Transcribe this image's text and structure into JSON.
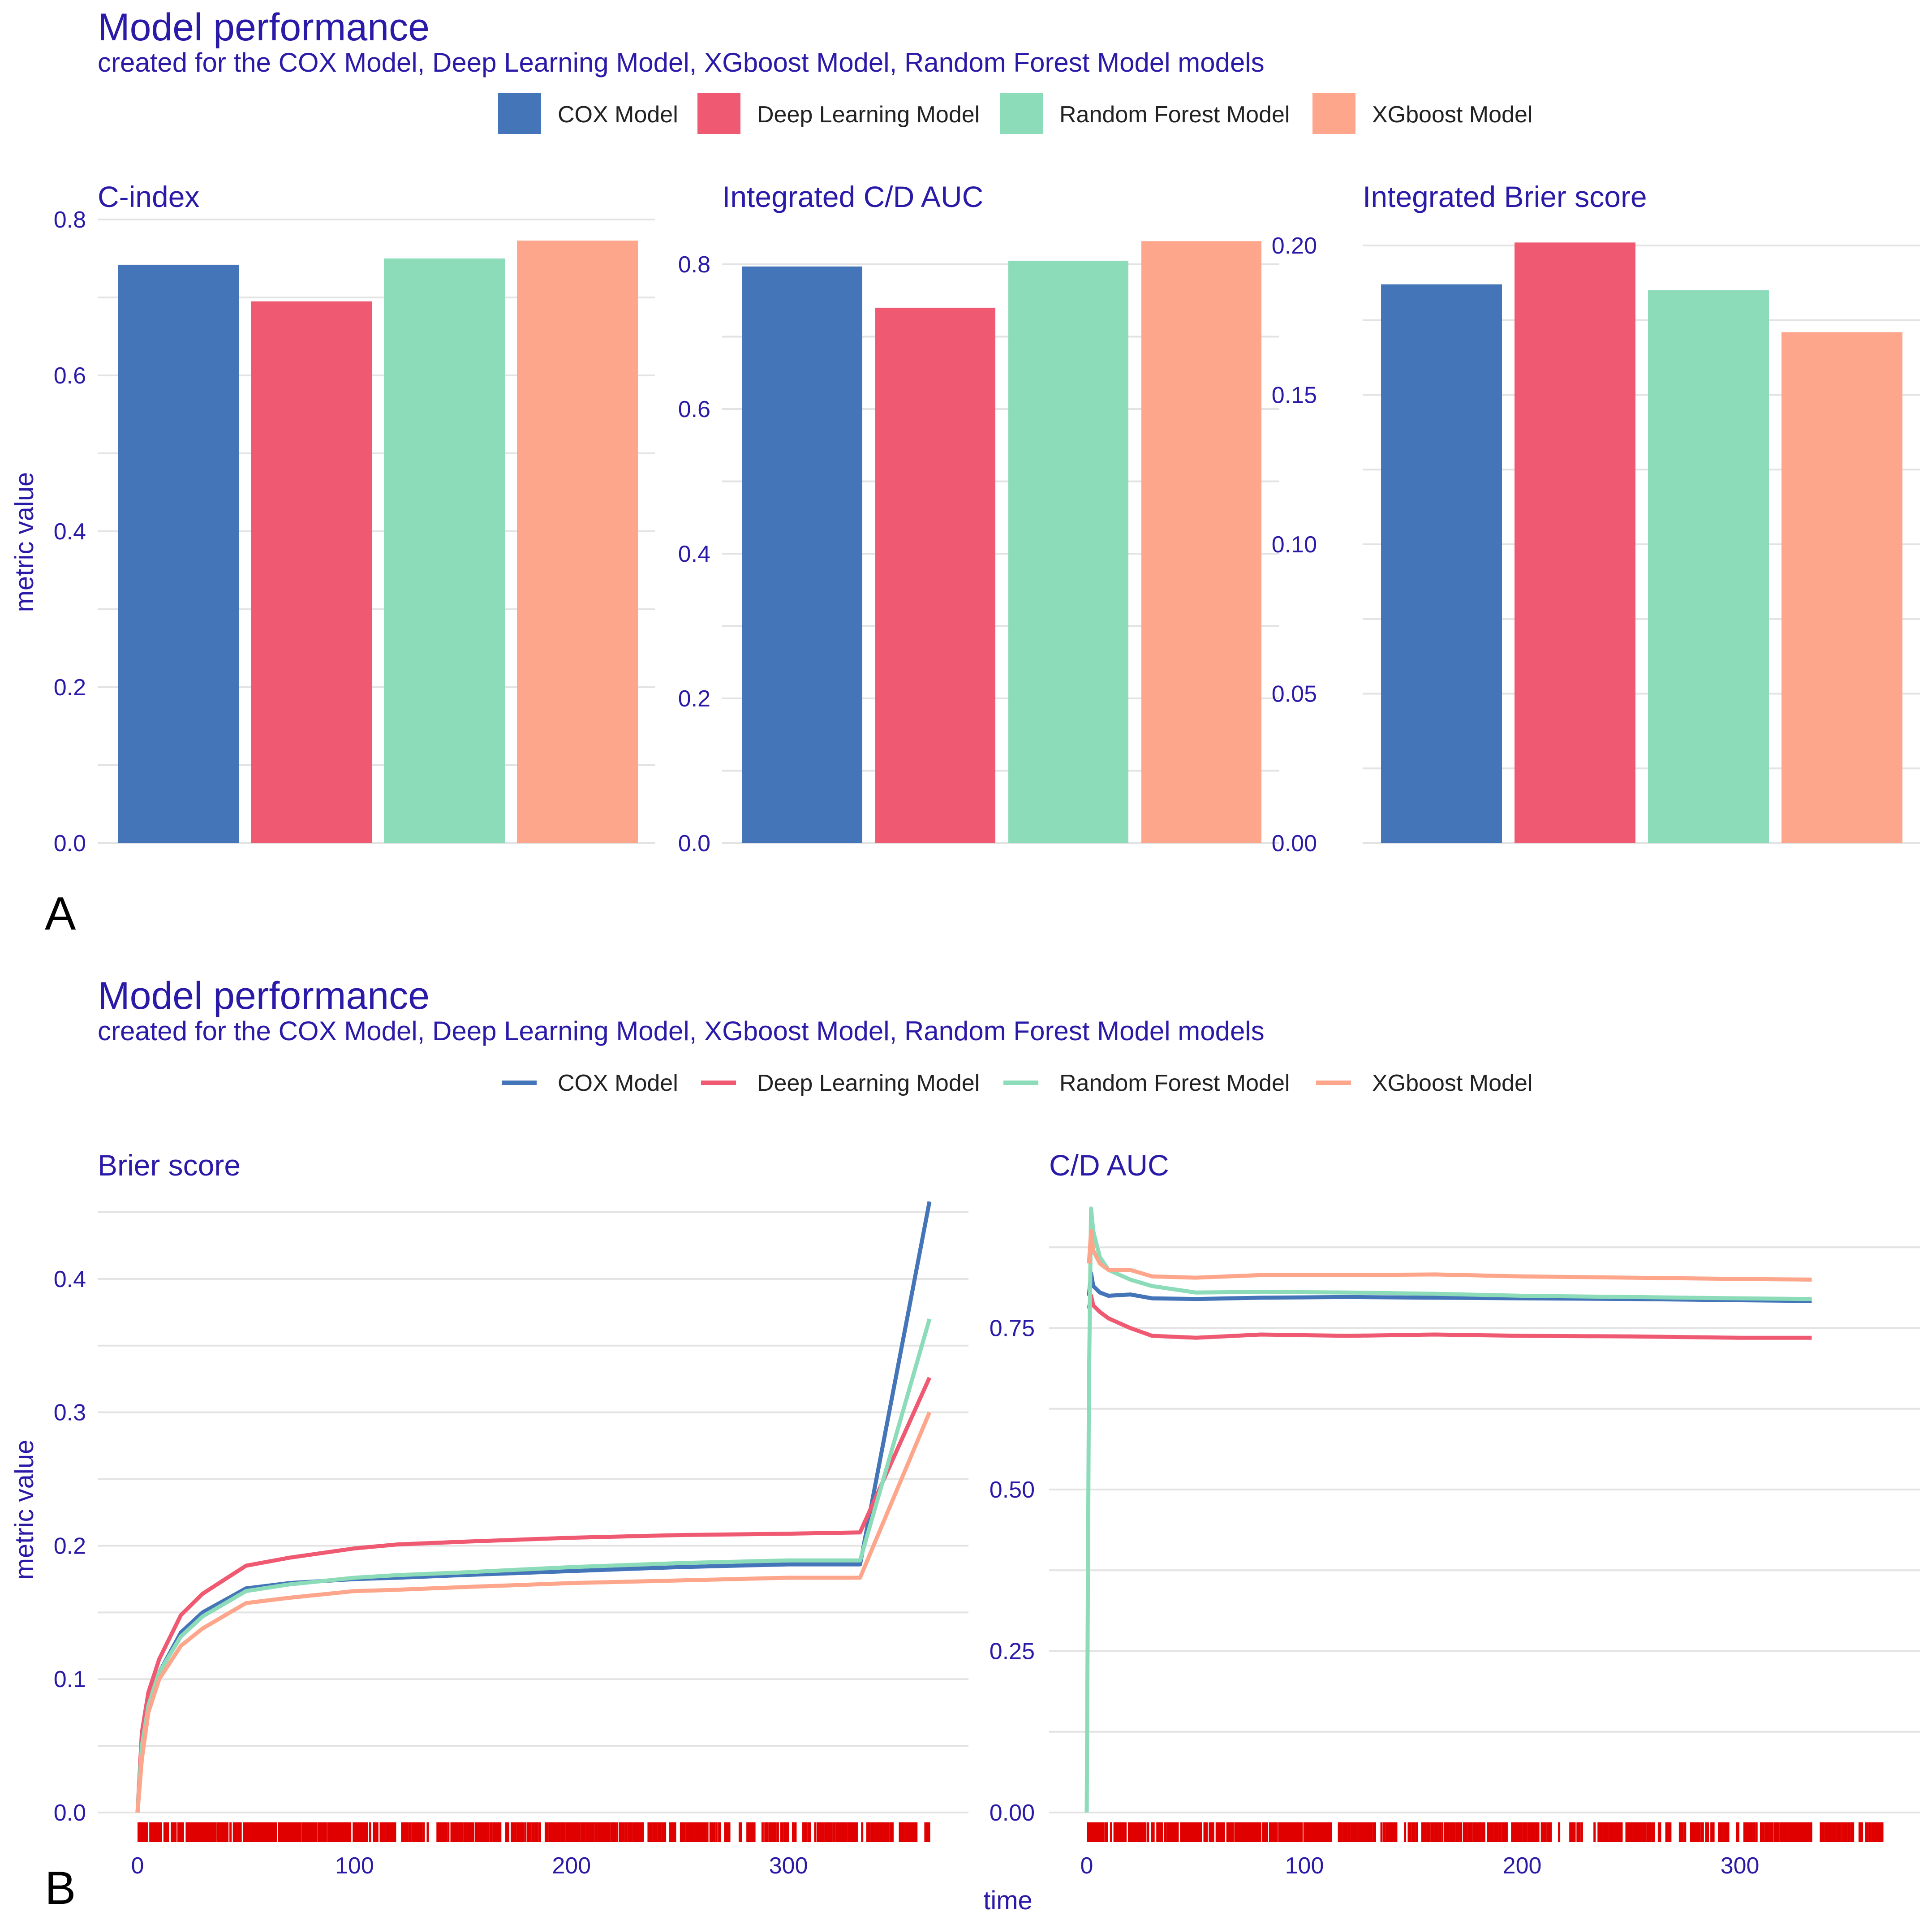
{
  "colors": {
    "cox": "#4575b9",
    "deep": "#ef5a72",
    "rf": "#8cdbb9",
    "xgb": "#fda68c",
    "text": "#2a1aa8",
    "rug": "#e00000"
  },
  "legend": [
    {
      "label": "COX Model",
      "color": "#4575b9"
    },
    {
      "label": "Deep Learning Model",
      "color": "#ef5a72"
    },
    {
      "label": "Random Forest Model",
      "color": "#8cdbb9"
    },
    {
      "label": "XGboost Model",
      "color": "#fda68c"
    }
  ],
  "panel_a": {
    "title": "Model performance",
    "subtitle": "created for the COX Model, Deep Learning Model, XGboost Model, Random Forest Model models",
    "letter": "A",
    "ylabel": "metric value"
  },
  "panel_b": {
    "title": "Model performance",
    "subtitle": "created for the COX Model, Deep Learning Model, XGboost Model, Random Forest Model models",
    "letter": "B",
    "ylabel": "metric value",
    "xlabel": "time"
  },
  "chart_data": [
    {
      "type": "bar",
      "title": "C-index",
      "categories": [
        "COX Model",
        "Deep Learning Model",
        "Random Forest Model",
        "XGboost Model"
      ],
      "values": [
        0.742,
        0.695,
        0.75,
        0.773
      ],
      "ylim": [
        0,
        0.8
      ],
      "yticks": [
        0.0,
        0.2,
        0.4,
        0.6,
        0.8
      ],
      "ytick_labels": [
        "0.0",
        "0.2",
        "0.4",
        "0.6",
        "0.8"
      ]
    },
    {
      "type": "bar",
      "title": "Integrated C/D AUC",
      "categories": [
        "COX Model",
        "Deep Learning Model",
        "Random Forest Model",
        "XGboost Model"
      ],
      "values": [
        0.797,
        0.74,
        0.805,
        0.832
      ],
      "ylim": [
        0,
        0.8
      ],
      "yticks": [
        0.0,
        0.2,
        0.4,
        0.6,
        0.8
      ],
      "ytick_labels": [
        "0.0",
        "0.2",
        "0.4",
        "0.6",
        "0.8"
      ]
    },
    {
      "type": "bar",
      "title": "Integrated Brier score",
      "categories": [
        "COX Model",
        "Deep Learning Model",
        "Random Forest Model",
        "XGboost Model"
      ],
      "values": [
        0.187,
        0.201,
        0.185,
        0.171
      ],
      "ylim": [
        0,
        0.2
      ],
      "yticks": [
        0.0,
        0.05,
        0.1,
        0.15,
        0.2
      ],
      "ytick_labels": [
        "0.00",
        "0.05",
        "0.10",
        "0.15",
        "0.20"
      ]
    },
    {
      "type": "line",
      "title": "Brier score",
      "xlabel": "time",
      "ylabel": "metric value",
      "ylim": [
        0,
        0.45
      ],
      "yticks": [
        0.0,
        0.1,
        0.2,
        0.3,
        0.4
      ],
      "ytick_labels": [
        "0.0",
        "0.1",
        "0.2",
        "0.3",
        "0.4"
      ],
      "xticks": [
        0,
        100,
        200,
        300
      ],
      "xtick_labels": [
        "0",
        "100",
        "200",
        "300"
      ],
      "series": [
        {
          "name": "COX Model",
          "x": [
            0,
            2,
            5,
            10,
            20,
            30,
            50,
            70,
            100,
            120,
            150,
            200,
            250,
            300,
            333,
            365
          ],
          "y": [
            0.0,
            0.05,
            0.08,
            0.105,
            0.135,
            0.15,
            0.168,
            0.172,
            0.175,
            0.176,
            0.178,
            0.181,
            0.184,
            0.186,
            0.186,
            0.458
          ]
        },
        {
          "name": "Deep Learning Model",
          "x": [
            0,
            2,
            5,
            10,
            20,
            30,
            50,
            70,
            100,
            120,
            150,
            200,
            250,
            300,
            333,
            365
          ],
          "y": [
            0.0,
            0.06,
            0.09,
            0.115,
            0.148,
            0.164,
            0.185,
            0.191,
            0.198,
            0.201,
            0.203,
            0.206,
            0.208,
            0.209,
            0.21,
            0.326
          ]
        },
        {
          "name": "Random Forest Model",
          "x": [
            0,
            2,
            5,
            10,
            20,
            30,
            50,
            70,
            100,
            120,
            150,
            200,
            250,
            300,
            333,
            365
          ],
          "y": [
            0.0,
            0.05,
            0.08,
            0.105,
            0.132,
            0.147,
            0.166,
            0.171,
            0.176,
            0.178,
            0.18,
            0.184,
            0.187,
            0.189,
            0.189,
            0.37
          ]
        },
        {
          "name": "XGboost Model",
          "x": [
            0,
            2,
            5,
            10,
            20,
            30,
            50,
            70,
            100,
            120,
            150,
            200,
            250,
            300,
            333,
            365
          ],
          "y": [
            0.0,
            0.04,
            0.075,
            0.1,
            0.125,
            0.138,
            0.157,
            0.161,
            0.166,
            0.167,
            0.169,
            0.172,
            0.174,
            0.176,
            0.176,
            0.3
          ]
        }
      ],
      "rug": true
    },
    {
      "type": "line",
      "title": "C/D AUC",
      "xlabel": "time",
      "ylim": [
        0,
        0.93
      ],
      "yticks": [
        0.0,
        0.25,
        0.5,
        0.75
      ],
      "ytick_labels": [
        "0.00",
        "0.25",
        "0.50",
        "0.75"
      ],
      "xticks": [
        0,
        100,
        200,
        300
      ],
      "xtick_labels": [
        "0",
        "100",
        "200",
        "300"
      ],
      "series": [
        {
          "name": "COX Model",
          "x": [
            1,
            2,
            3,
            6,
            10,
            20,
            30,
            50,
            80,
            120,
            160,
            200,
            250,
            300,
            333
          ],
          "y": [
            0.8,
            0.835,
            0.815,
            0.805,
            0.8,
            0.802,
            0.796,
            0.795,
            0.797,
            0.798,
            0.797,
            0.796,
            0.795,
            0.793,
            0.792
          ]
        },
        {
          "name": "Deep Learning Model",
          "x": [
            1,
            2,
            3,
            6,
            10,
            20,
            30,
            50,
            80,
            120,
            160,
            200,
            250,
            300,
            333
          ],
          "y": [
            0.78,
            0.8,
            0.785,
            0.775,
            0.765,
            0.75,
            0.738,
            0.735,
            0.74,
            0.738,
            0.74,
            0.738,
            0.737,
            0.735,
            0.735
          ]
        },
        {
          "name": "Random Forest Model",
          "x": [
            0,
            1,
            2,
            3,
            6,
            10,
            20,
            30,
            50,
            80,
            120,
            160,
            200,
            250,
            300,
            333
          ],
          "y": [
            0.0,
            0.66,
            0.935,
            0.9,
            0.86,
            0.84,
            0.825,
            0.815,
            0.805,
            0.806,
            0.805,
            0.803,
            0.8,
            0.798,
            0.796,
            0.795
          ]
        },
        {
          "name": "XGboost Model",
          "x": [
            1,
            2,
            3,
            6,
            10,
            20,
            30,
            50,
            80,
            120,
            160,
            200,
            250,
            300,
            333
          ],
          "y": [
            0.85,
            0.9,
            0.87,
            0.85,
            0.84,
            0.84,
            0.83,
            0.828,
            0.832,
            0.832,
            0.833,
            0.83,
            0.828,
            0.826,
            0.825
          ]
        }
      ],
      "rug": true
    }
  ]
}
